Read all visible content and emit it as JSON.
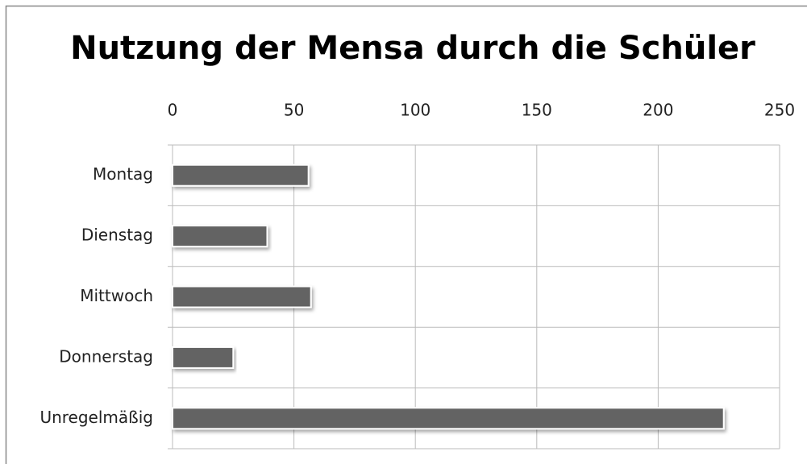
{
  "chart_data": {
    "type": "bar",
    "orientation": "horizontal",
    "title": "Nutzung der Mensa durch die Schüler",
    "categories": [
      "Montag",
      "Dienstag",
      "Mittwoch",
      "Donnerstag",
      "Unregelmäßig"
    ],
    "values": [
      56,
      39,
      57,
      25,
      227
    ],
    "color": "#636363",
    "xlim": [
      0,
      250
    ],
    "xticks": [
      0,
      50,
      100,
      150,
      200,
      250
    ],
    "grid": true,
    "axis_position": "top"
  }
}
